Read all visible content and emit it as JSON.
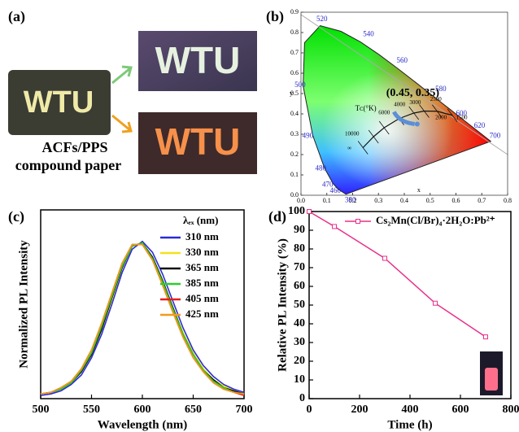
{
  "panel_a": {
    "label": "(a)",
    "photo_text": "WTU",
    "caption": [
      "ACFs/PPS",
      "compound paper"
    ]
  },
  "chart_data": [
    {
      "type": "cie",
      "panel_label": "(b)",
      "x_label": "x",
      "y_label": "y",
      "xlim": [
        0,
        0.8
      ],
      "ylim": [
        0,
        0.9
      ],
      "xticks": [
        {
          "value": 0,
          "label": "0.0"
        },
        0.1,
        0.2,
        0.3,
        0.4,
        0.5,
        0.6,
        0.7,
        0.8
      ],
      "yticks": [
        {
          "value": 0,
          "label": "0.0"
        },
        0.1,
        0.2,
        0.3,
        0.4,
        0.5,
        0.6,
        0.7,
        0.8,
        0.9
      ],
      "wavelength_labels": [
        "380",
        "460",
        "470",
        "480",
        "490",
        "500",
        "520",
        "540",
        "560",
        "580",
        "600",
        "620",
        "700"
      ],
      "cct_title": "Tᴄ(°K)",
      "cct_labels": [
        "10000",
        "6000",
        "4000",
        "3000",
        "2500",
        "2000",
        "1500",
        "∞"
      ],
      "point": [
        0.45,
        0.35
      ],
      "point_label": "(0.45, 0.35)"
    },
    {
      "type": "line",
      "panel_label": "(c)",
      "x_label": "Wavelength (nm)",
      "y_label": "Normalized PL Intensity",
      "legend_title": "λₑₓ (nm)",
      "x": [
        500,
        510,
        520,
        530,
        540,
        550,
        560,
        570,
        580,
        590,
        600,
        610,
        620,
        630,
        640,
        650,
        660,
        670,
        680,
        690,
        700
      ],
      "xlim": [
        500,
        700
      ],
      "xticks": [
        500,
        550,
        600,
        650,
        700
      ],
      "ylim": [
        0,
        1.2
      ],
      "series": [
        {
          "name": "310 nm",
          "color": "#2b2bd6",
          "values": [
            0.02,
            0.03,
            0.05,
            0.09,
            0.15,
            0.26,
            0.41,
            0.6,
            0.8,
            0.95,
            1.0,
            0.93,
            0.79,
            0.62,
            0.45,
            0.31,
            0.21,
            0.14,
            0.09,
            0.06,
            0.04
          ]
        },
        {
          "name": "330 nm",
          "color": "#f2e21b",
          "values": [
            0.03,
            0.04,
            0.06,
            0.1,
            0.17,
            0.28,
            0.44,
            0.63,
            0.83,
            0.97,
            0.99,
            0.9,
            0.75,
            0.58,
            0.42,
            0.29,
            0.19,
            0.12,
            0.08,
            0.05,
            0.03
          ]
        },
        {
          "name": "365 nm",
          "color": "#111111",
          "values": [
            0.03,
            0.04,
            0.06,
            0.1,
            0.17,
            0.28,
            0.44,
            0.64,
            0.83,
            0.97,
            0.99,
            0.9,
            0.75,
            0.58,
            0.41,
            0.28,
            0.18,
            0.12,
            0.07,
            0.05,
            0.03
          ]
        },
        {
          "name": "385 nm",
          "color": "#2ecc2e",
          "values": [
            0.03,
            0.04,
            0.06,
            0.1,
            0.18,
            0.29,
            0.46,
            0.65,
            0.84,
            0.97,
            0.99,
            0.89,
            0.74,
            0.57,
            0.41,
            0.28,
            0.18,
            0.11,
            0.07,
            0.04,
            0.03
          ]
        },
        {
          "name": "405 nm",
          "color": "#e61e1e",
          "values": [
            0.03,
            0.04,
            0.07,
            0.11,
            0.19,
            0.31,
            0.48,
            0.67,
            0.86,
            0.98,
            0.98,
            0.88,
            0.72,
            0.55,
            0.39,
            0.26,
            0.17,
            0.1,
            0.06,
            0.04,
            0.02
          ]
        },
        {
          "name": "425 nm",
          "color": "#f29a1b",
          "values": [
            0.03,
            0.04,
            0.07,
            0.11,
            0.19,
            0.31,
            0.48,
            0.67,
            0.86,
            0.98,
            0.98,
            0.88,
            0.72,
            0.55,
            0.39,
            0.26,
            0.17,
            0.1,
            0.06,
            0.04,
            0.03
          ]
        }
      ]
    },
    {
      "type": "line",
      "panel_label": "(d)",
      "x_label": "Time (h)",
      "y_label": "Relative PL Intensity (%)",
      "x": [
        0,
        100,
        300,
        500,
        700
      ],
      "xlim": [
        0,
        800
      ],
      "xticks": [
        0,
        200,
        400,
        600,
        800
      ],
      "ylim": [
        0,
        100
      ],
      "yticks": [
        0,
        10,
        20,
        30,
        40,
        50,
        60,
        70,
        80,
        90,
        100
      ],
      "markers": true,
      "series": [
        {
          "name": "Cs₂Mn(Cl/Br)₄·2H₂O:Pb²⁺",
          "color": "#e8318a",
          "values": [
            100,
            92,
            75,
            51,
            33
          ]
        }
      ]
    }
  ]
}
